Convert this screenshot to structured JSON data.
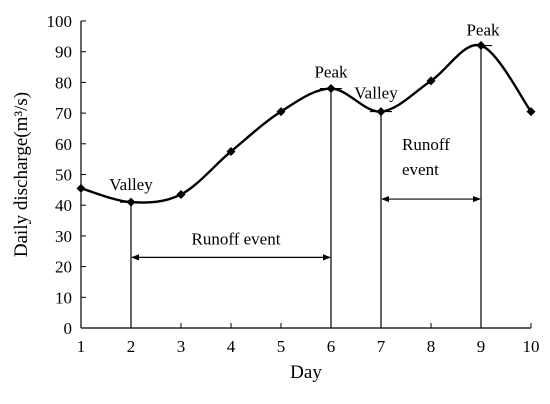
{
  "chart_data": {
    "type": "line",
    "x": [
      1,
      2,
      3,
      4,
      5,
      6,
      7,
      8,
      9,
      10
    ],
    "y": [
      45.5,
      41,
      43.5,
      57.5,
      70.5,
      78,
      70.5,
      80.5,
      92,
      70.5
    ],
    "xlabel": "Day",
    "ylabel": "Daily discharge(m³/s)",
    "xlim": [
      1,
      10
    ],
    "ylim": [
      0,
      100
    ],
    "x_ticks": [
      "1",
      "2",
      "3",
      "4",
      "5",
      "6",
      "7",
      "8",
      "9",
      "10"
    ],
    "y_ticks": [
      "0",
      "10",
      "20",
      "30",
      "40",
      "50",
      "60",
      "70",
      "80",
      "90",
      "100"
    ],
    "grid": false,
    "annotations": [
      {
        "label": "Valley",
        "x": 2,
        "y": 41
      },
      {
        "label": "Peak",
        "x": 6,
        "y": 78
      },
      {
        "label": "Valley",
        "x": 7,
        "y": 70.5
      },
      {
        "label": "Peak",
        "x": 9,
        "y": 92
      }
    ],
    "runoff_events": [
      {
        "label": "Runoff event",
        "x_start": 2,
        "x_end": 6,
        "y": 23
      },
      {
        "label_lines": [
          "Runoff",
          "event"
        ],
        "x_start": 7,
        "x_end": 9,
        "y": 42
      }
    ],
    "colors": {
      "line": "#000000",
      "axis": "#000000"
    }
  }
}
